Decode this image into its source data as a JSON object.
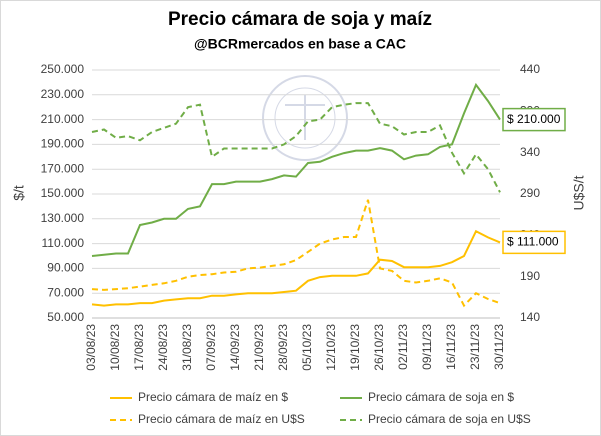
{
  "chart_data": {
    "type": "line",
    "title": "Precio cámara de soja y maíz",
    "subtitle": "@BCRmercados en base a CAC",
    "y_label": "$/t",
    "y2_label": "U$S/t",
    "grid": true,
    "legend": "bottom",
    "categories": [
      "03/08/23",
      null,
      "10/08/23",
      null,
      "17/08/23",
      null,
      "24/08/23",
      null,
      "31/08/23",
      null,
      "07/09/23",
      null,
      "14/09/23",
      null,
      "21/09/23",
      null,
      "28/09/23",
      null,
      "05/10/23",
      null,
      "12/10/23",
      null,
      "19/10/23",
      null,
      "26/10/23",
      null,
      "02/11/23",
      null,
      "09/11/23",
      null,
      "16/11/23",
      null,
      "23/11/23",
      null,
      "30/11/23"
    ],
    "ylim": [
      50000,
      250000
    ],
    "yticks": [
      {
        "value": 50000,
        "label": "50.000"
      },
      {
        "value": 70000,
        "label": "70.000"
      },
      {
        "value": 90000,
        "label": "90.000"
      },
      {
        "value": 110000,
        "label": "110.000"
      },
      {
        "value": 130000,
        "label": "130.000"
      },
      {
        "value": 150000,
        "label": "150.000"
      },
      {
        "value": 170000,
        "label": "170.000"
      },
      {
        "value": 190000,
        "label": "190.000"
      },
      {
        "value": 210000,
        "label": "210.000"
      },
      {
        "value": 230000,
        "label": "230.000"
      },
      {
        "value": 250000,
        "label": "250.000"
      }
    ],
    "y2lim": [
      140,
      440
    ],
    "y2ticks": [
      140,
      190,
      240,
      290,
      340,
      390,
      440
    ],
    "series": [
      {
        "name": "Precio cámara de maíz en $",
        "color": "#ffc000",
        "dash": false,
        "axis": "y",
        "values": [
          61000,
          60000,
          61000,
          61000,
          62000,
          62000,
          64000,
          65000,
          66000,
          66000,
          68000,
          68000,
          69000,
          70000,
          70000,
          70000,
          71000,
          72000,
          80000,
          83000,
          84000,
          84000,
          84000,
          86000,
          97000,
          96000,
          91000,
          91000,
          91000,
          92000,
          95000,
          100000,
          120000,
          115000,
          111000
        ]
      },
      {
        "name": "Precio cámara de soja en $",
        "color": "#70ad47",
        "dash": false,
        "axis": "y",
        "values": [
          100000,
          101000,
          102000,
          102000,
          125000,
          127000,
          130000,
          130000,
          138000,
          140000,
          158000,
          158000,
          160000,
          160000,
          160000,
          162000,
          165000,
          164000,
          175000,
          176000,
          180000,
          183000,
          185000,
          185000,
          187000,
          185000,
          178000,
          181000,
          182000,
          188000,
          190000,
          215000,
          238000,
          225000,
          210000
        ]
      },
      {
        "name": "Precio cámara de maíz en U$S",
        "color": "#ffc000",
        "dash": true,
        "axis": "y2",
        "values": [
          175,
          174,
          175,
          176,
          178,
          180,
          182,
          185,
          190,
          192,
          193,
          195,
          196,
          200,
          201,
          203,
          205,
          210,
          220,
          230,
          235,
          238,
          238,
          283,
          200,
          197,
          185,
          183,
          185,
          188,
          183,
          155,
          170,
          163,
          158
        ]
      },
      {
        "name": "Precio cámara de soja en U$S",
        "color": "#70ad47",
        "dash": true,
        "axis": "y2",
        "values": [
          365,
          368,
          358,
          360,
          355,
          365,
          370,
          375,
          395,
          398,
          335,
          345,
          345,
          345,
          345,
          345,
          350,
          360,
          378,
          380,
          395,
          398,
          400,
          400,
          375,
          372,
          362,
          365,
          365,
          373,
          340,
          315,
          338,
          320,
          292
        ]
      }
    ],
    "annotations": [
      {
        "text": "$ 210.000",
        "series": 1
      },
      {
        "text": "$ 111.000",
        "series": 0
      }
    ]
  }
}
